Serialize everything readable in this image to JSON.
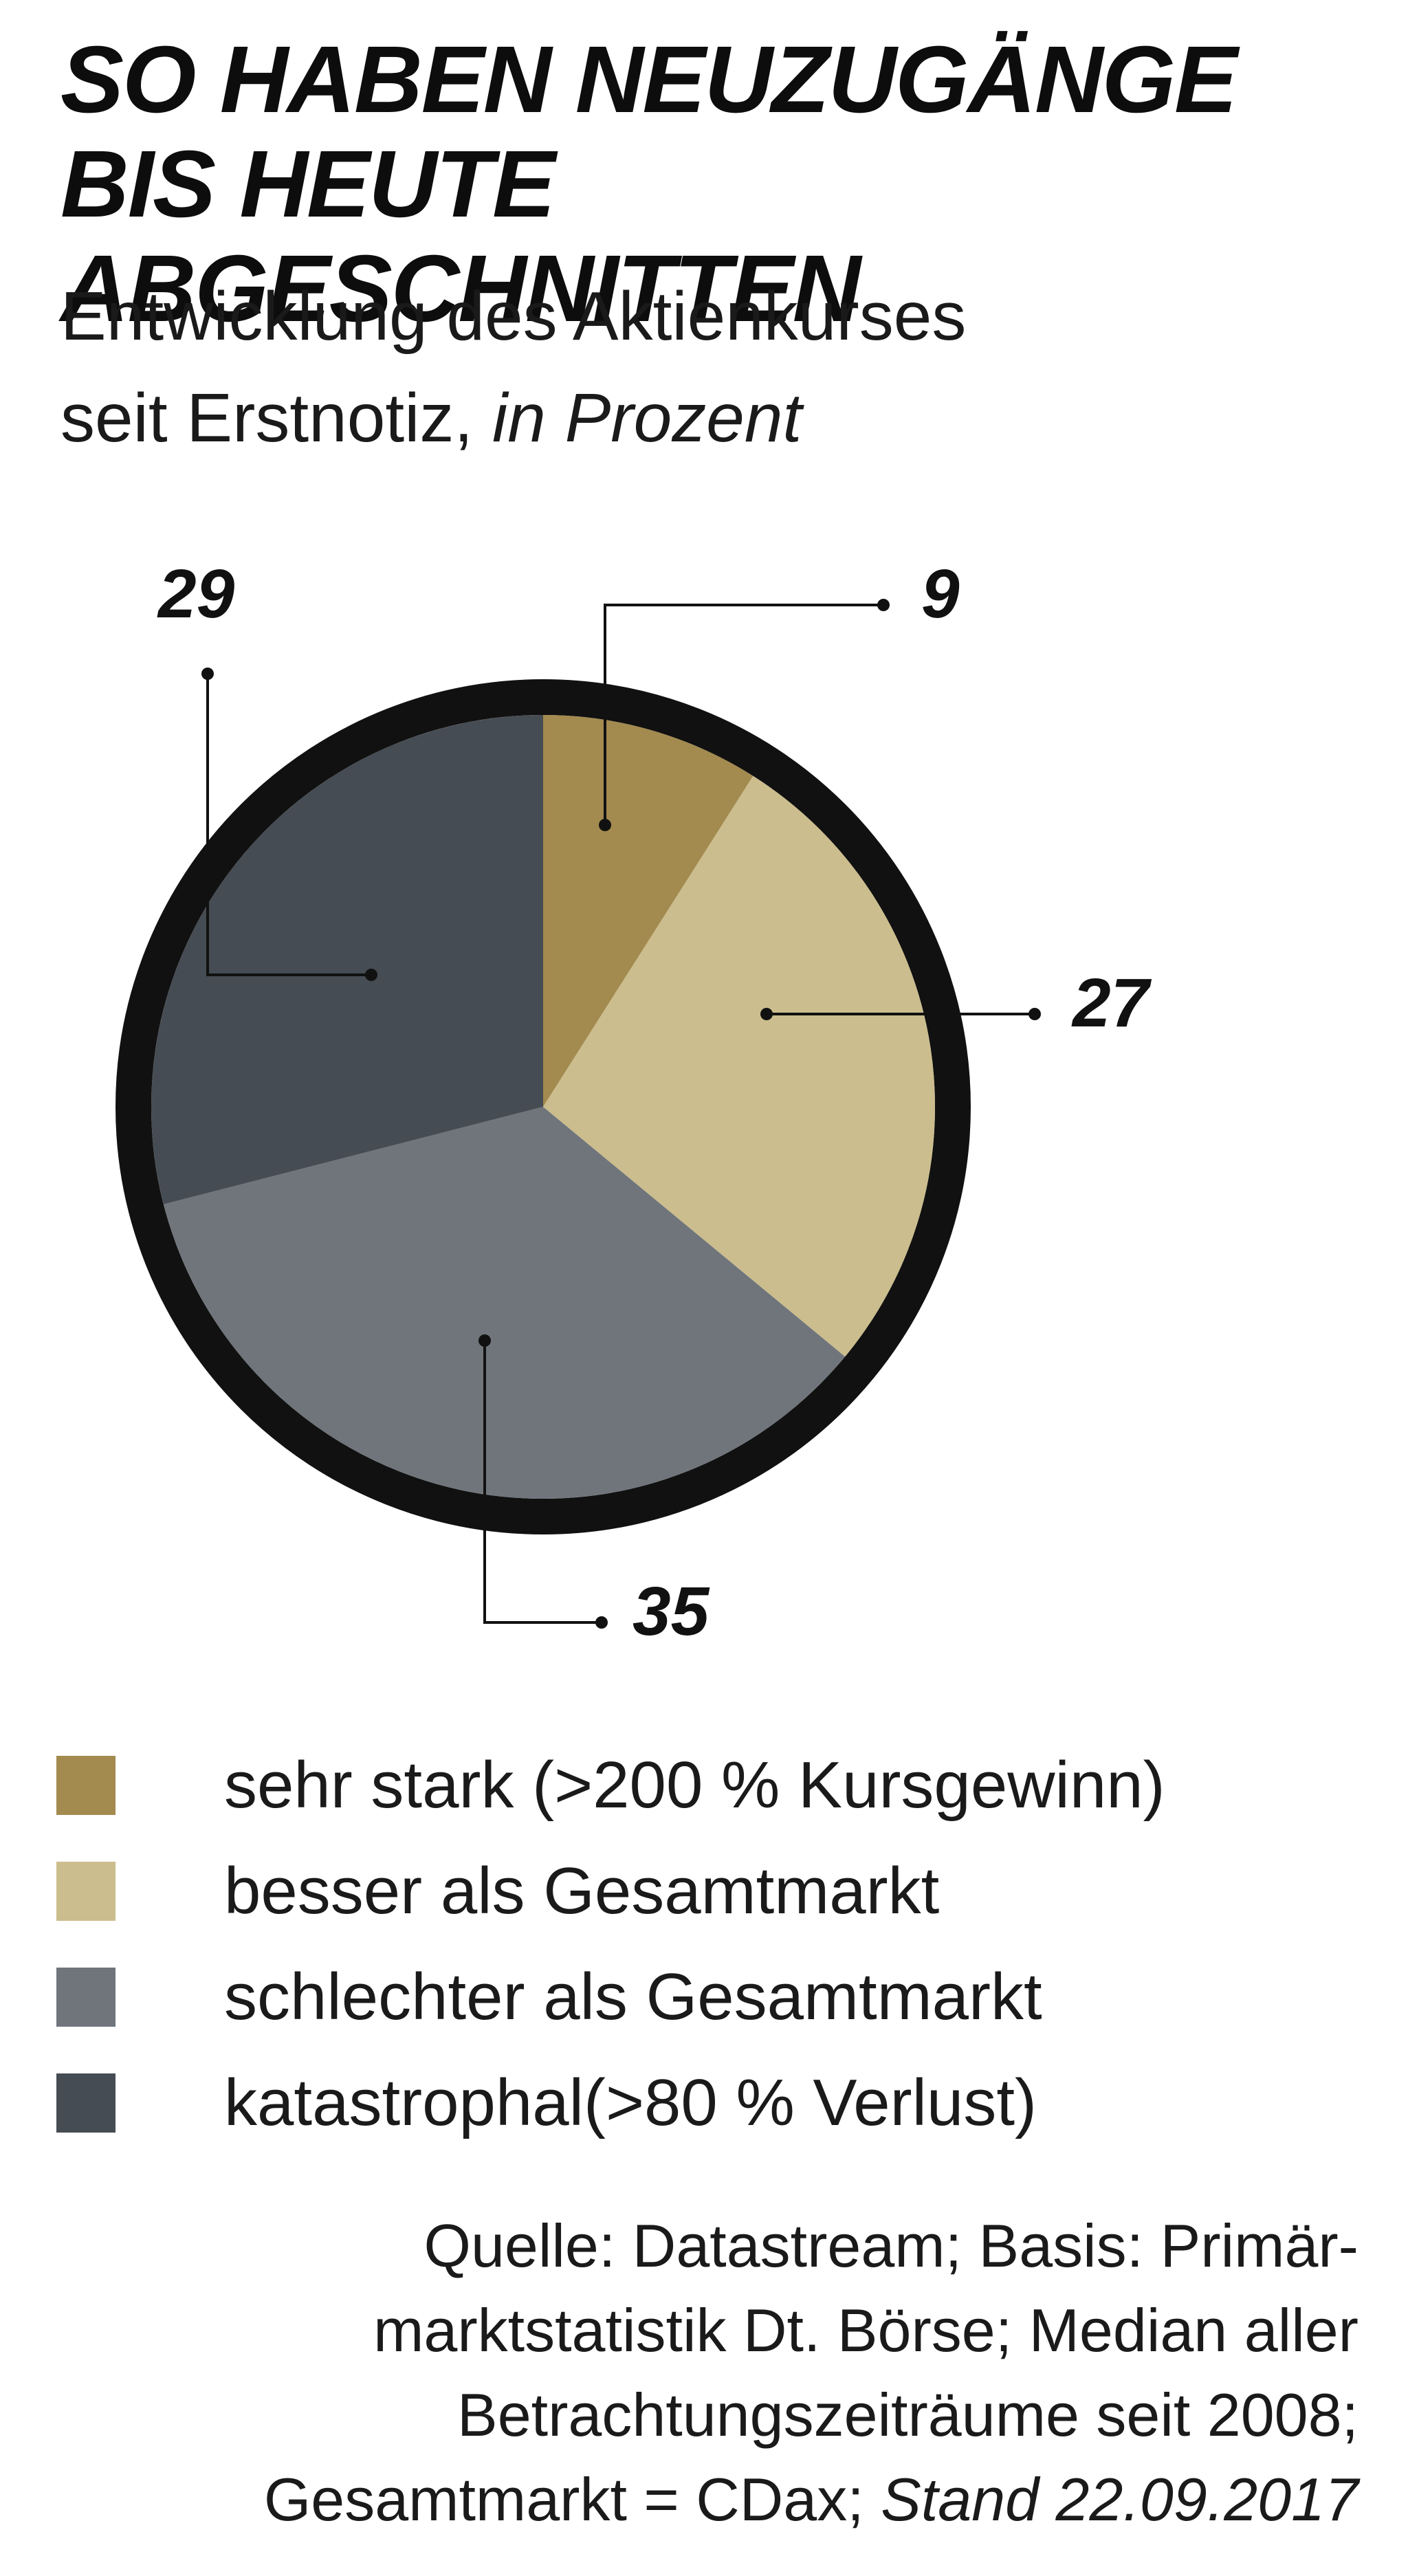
{
  "title": {
    "line1": "SO HABEN NEUZUGÄNGE",
    "line2": "BIS HEUTE ABGESCHNITTEN"
  },
  "subtitle": {
    "line1": "Entwicklung des Aktienkurses",
    "line2": "seit Erstnotiz, ",
    "unit": "in Prozent"
  },
  "chart_data": {
    "type": "pie",
    "slices": [
      {
        "label": "sehr stark (>200 % Kursgewinn)",
        "value": 9,
        "color": "#a38a4f"
      },
      {
        "label": "besser als Gesamtmarkt",
        "value": 27,
        "color": "#cbbd8d"
      },
      {
        "label": "schlechter als Gesamtmarkt",
        "value": 35,
        "color": "#6f757b"
      },
      {
        "label": "katastrophal(>80 % Verlust)",
        "value": 29,
        "color": "#464c53"
      }
    ],
    "ring_color": "#111111"
  },
  "legend": [
    {
      "label": "sehr stark (>200 % Kursgewinn)",
      "color": "#a38a4f"
    },
    {
      "label": "besser als Gesamtmarkt",
      "color": "#cbbd8d"
    },
    {
      "label": "schlechter als Gesamtmarkt",
      "color": "#6f757b"
    },
    {
      "label": "katastrophal(>80 % Verlust)",
      "color": "#464c53"
    }
  ],
  "source": {
    "line1": "Quelle: Datastream; Basis: Primär-",
    "line2": "marktstatistik Dt. Börse; Median aller",
    "line3": "Betrachtungszeiträume seit 2008;",
    "line4": "Gesamtmarkt = CDax; ",
    "stand": "Stand 22.09.2017"
  }
}
